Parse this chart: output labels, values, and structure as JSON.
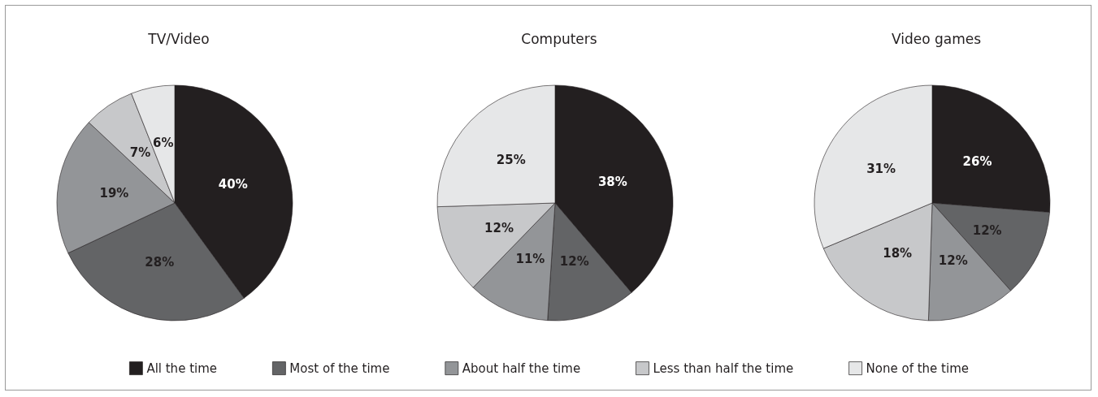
{
  "chart_data": [
    {
      "type": "pie",
      "title": "TV/Video",
      "categories": [
        "All the time",
        "Most of the time",
        "About half the time",
        "Less than half the time",
        "None of the time"
      ],
      "values": [
        40,
        28,
        19,
        7,
        6
      ],
      "colors": [
        "#231f20",
        "#636466",
        "#939598",
        "#c7c8ca",
        "#e6e7e8"
      ],
      "value_labels": [
        "40%",
        "28%",
        "19%",
        "7%",
        "6%"
      ],
      "legend": "bottom"
    },
    {
      "type": "pie",
      "title": "Computers",
      "values": [
        38,
        12,
        11,
        12,
        25
      ],
      "colors": [
        "#231f20",
        "#636466",
        "#939598",
        "#c7c8ca",
        "#e6e7e8"
      ],
      "value_labels": [
        "38%",
        "12%",
        "11%",
        "12%",
        "25%"
      ]
    },
    {
      "type": "pie",
      "title": "Video games",
      "values": [
        26,
        12,
        12,
        18,
        31
      ],
      "colors": [
        "#231f20",
        "#636466",
        "#939598",
        "#c7c8ca",
        "#e6e7e8"
      ],
      "value_labels": [
        "26%",
        "12%",
        "12%",
        "18%",
        "31%"
      ]
    }
  ]
}
